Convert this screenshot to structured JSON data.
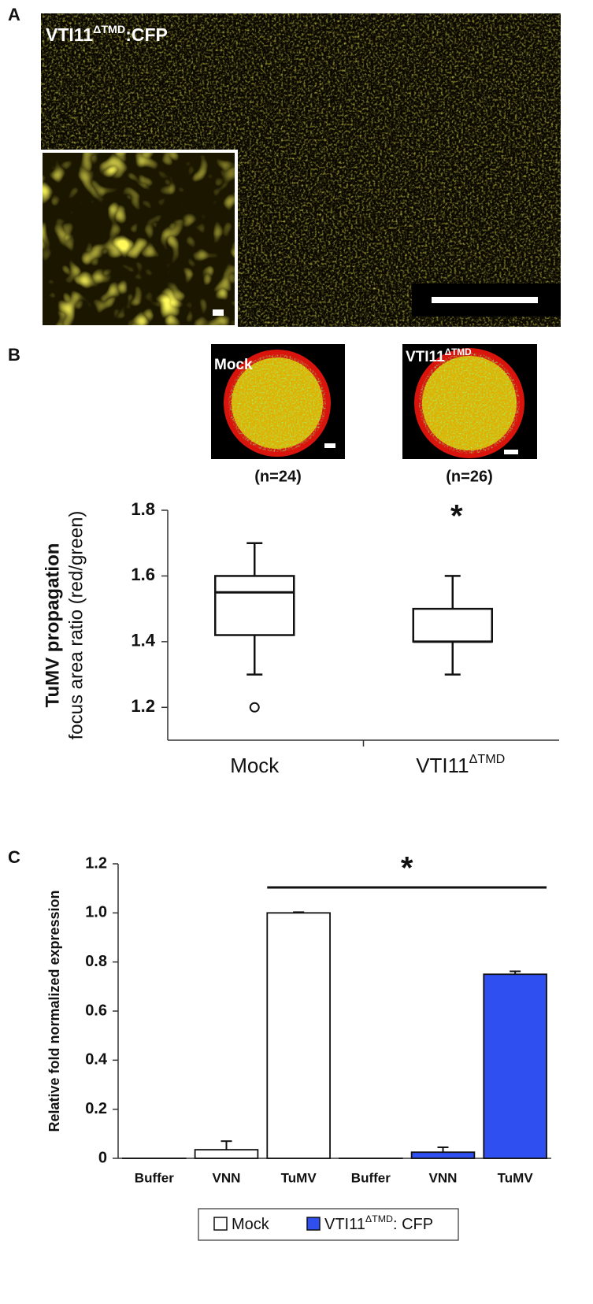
{
  "panel_labels": [
    "A",
    "B",
    "C"
  ],
  "panel_a": {
    "title": "VTI11",
    "title_sup": "ΔTMD",
    "title_suffix": ":CFP"
  },
  "panel_b_images": [
    {
      "label": "Mock",
      "n": "(n=24)"
    },
    {
      "label": "VTI11",
      "label_sup": "ΔTMD",
      "n": "(n=26)"
    }
  ],
  "chart_data": [
    {
      "type": "box",
      "y_label_title": "TuMV propagation",
      "y_label": "focus area ratio (red/green)",
      "categories": [
        "Mock",
        "VTI11"
      ],
      "category_sups": [
        null,
        "ΔTMD"
      ],
      "boxes": [
        {
          "whisker_low": 1.3,
          "q1": 1.42,
          "median": 1.55,
          "q3": 1.6,
          "whisker_high": 1.7,
          "outliers": [
            1.2
          ]
        },
        {
          "whisker_low": 1.3,
          "q1": 1.4,
          "median": 1.4,
          "q3": 1.5,
          "whisker_high": 1.6,
          "outliers": []
        }
      ],
      "significance": "*",
      "ylim": [
        1.1,
        1.8
      ],
      "yticks": [
        1.2,
        1.4,
        1.6,
        1.8
      ]
    },
    {
      "type": "bar",
      "y_label": "Relative fold normalized expression",
      "categories": [
        "Buffer",
        "VNN",
        "TuMV",
        "Buffer",
        "VNN",
        "TuMV"
      ],
      "series": [
        {
          "name": "Mock",
          "color": "#ffffff",
          "values": [
            0,
            0.035,
            1.0,
            null,
            null,
            null
          ],
          "errors": [
            null,
            0.035,
            0.003,
            null,
            null,
            null
          ]
        },
        {
          "name": "VTI11",
          "name_sup": "ΔTMD",
          "name_suffix": ": CFP",
          "color": "#2f4ff0",
          "values": [
            null,
            null,
            null,
            0,
            0.025,
            0.75
          ],
          "errors": [
            null,
            null,
            null,
            null,
            0.02,
            0.012
          ]
        }
      ],
      "significance": "*",
      "ylim": [
        0,
        1.2
      ],
      "yticks": [
        0,
        0.2,
        0.4,
        0.6,
        0.8,
        {
          "value": 1,
          "label": "1.0"
        },
        1.2
      ]
    }
  ]
}
